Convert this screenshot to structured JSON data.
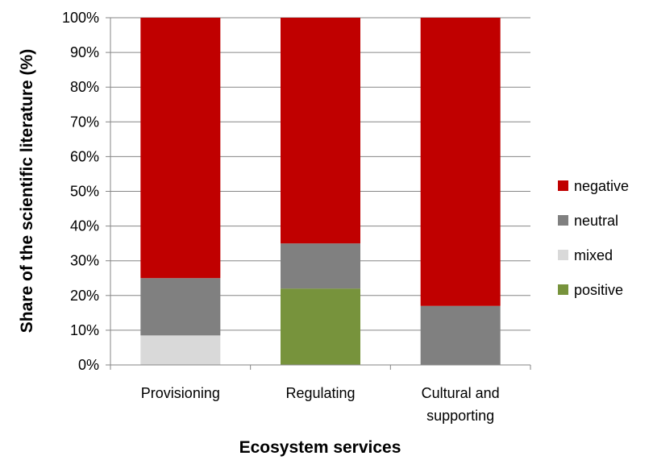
{
  "chart_data": {
    "type": "bar",
    "stacked": true,
    "title": "",
    "xlabel": "Ecosystem services",
    "ylabel": "Share of the scientific literature (%)",
    "ylim": [
      0,
      100
    ],
    "yticks": [
      "0%",
      "10%",
      "20%",
      "30%",
      "40%",
      "50%",
      "60%",
      "70%",
      "80%",
      "90%",
      "100%"
    ],
    "grid": true,
    "legend_position": "right",
    "categories": [
      [
        "Provisioning"
      ],
      [
        "Regulating"
      ],
      [
        "Cultural and",
        "supporting"
      ]
    ],
    "series": [
      {
        "name": "positive",
        "color": "#77933C",
        "values": [
          0,
          22,
          0
        ]
      },
      {
        "name": "mixed",
        "color": "#D9D9D9",
        "values": [
          8.5,
          0,
          0
        ]
      },
      {
        "name": "neutral",
        "color": "#808080",
        "values": [
          16.5,
          13,
          17
        ]
      },
      {
        "name": "negative",
        "color": "#C00000",
        "values": [
          75,
          65,
          83
        ]
      }
    ],
    "legend_order": [
      "negative",
      "neutral",
      "mixed",
      "positive"
    ]
  }
}
